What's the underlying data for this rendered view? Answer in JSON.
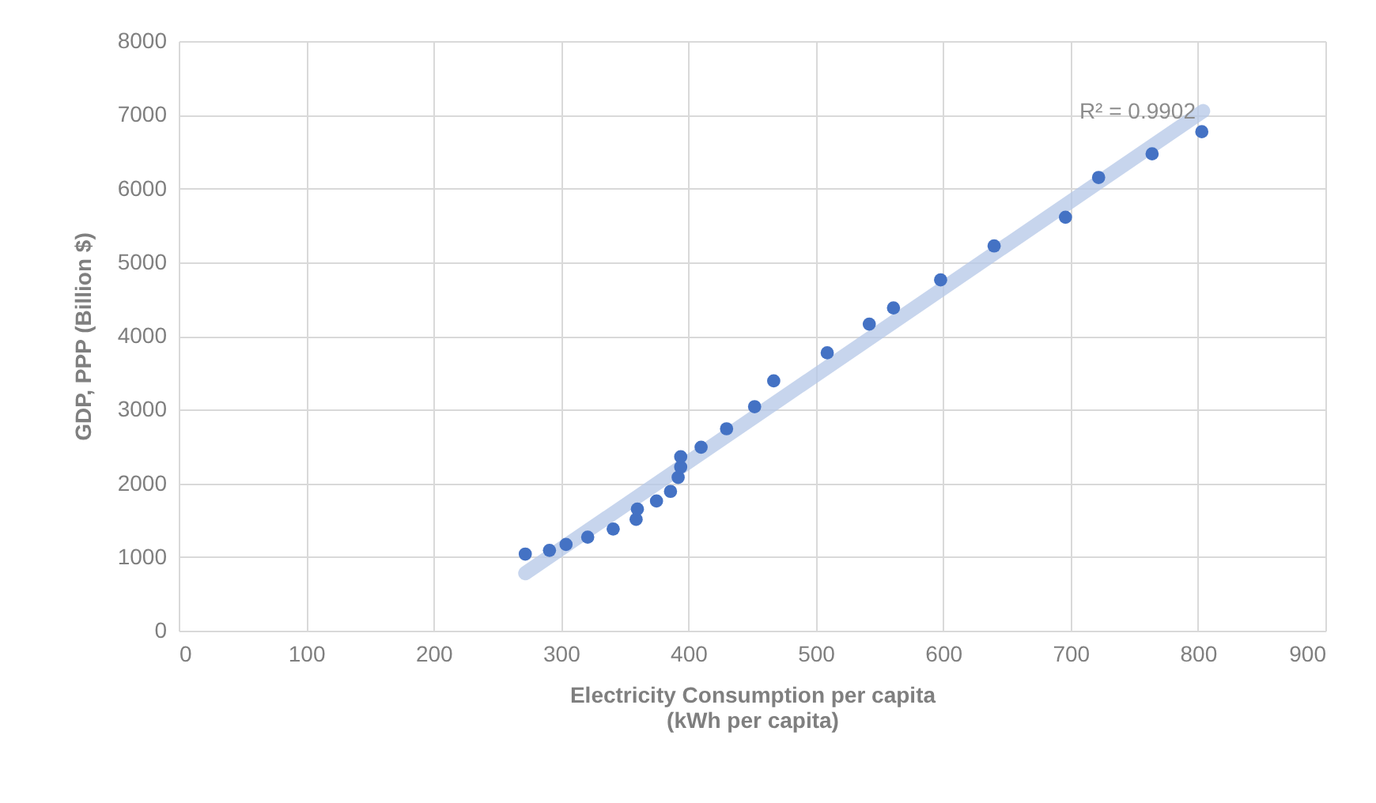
{
  "chart_data": {
    "type": "scatter",
    "xlabel": "Electricity Consumption per capita\n(kWh per capita)",
    "ylabel": "GDP, PPP (Billion $)",
    "xlim": [
      0,
      900
    ],
    "xticks": [
      0,
      100,
      200,
      300,
      400,
      500,
      600,
      700,
      800,
      900
    ],
    "ylim": [
      0,
      8000
    ],
    "yticks": [
      0,
      1000,
      2000,
      3000,
      4000,
      5000,
      6000,
      7000,
      8000
    ],
    "grid": true,
    "annotations": [
      "R² = 0.9902"
    ],
    "series": [
      {
        "marker": "circle",
        "color": "#4472c4",
        "x": [
          272,
          291,
          304,
          321,
          341,
          359,
          360,
          375,
          386,
          392,
          394,
          394,
          410,
          430,
          452,
          467,
          509,
          542,
          561,
          598,
          640,
          696,
          722,
          764,
          803
        ],
        "values": [
          1040,
          1090,
          1170,
          1270,
          1380,
          1510,
          1650,
          1760,
          1890,
          2080,
          2220,
          2360,
          2490,
          2740,
          3040,
          3390,
          3770,
          4160,
          4380,
          4760,
          5220,
          5610,
          6150,
          6470,
          6770
        ]
      },
      {
        "type": "line",
        "color": "#b4c7e7",
        "x": [
          272,
          804
        ],
        "values": [
          780,
          7050
        ]
      }
    ]
  }
}
